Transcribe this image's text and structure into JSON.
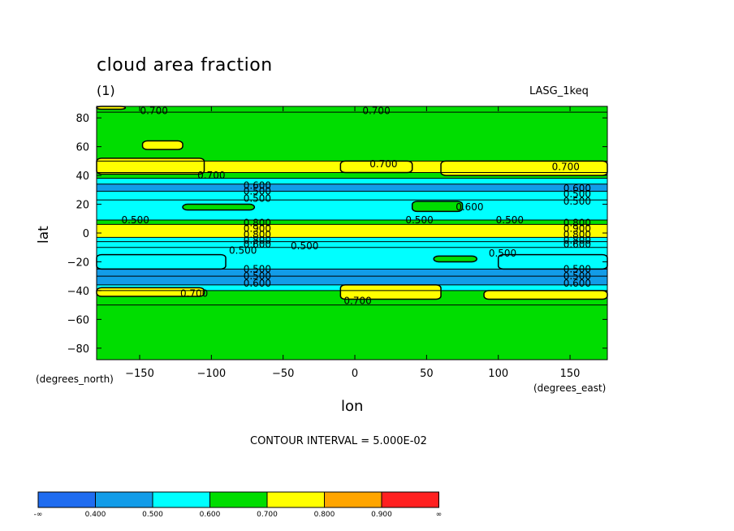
{
  "chart_data": {
    "type": "heatmap",
    "title": "cloud area fraction",
    "subtitle": "(1)",
    "dataset_label": "LASG_1keq",
    "xlabel": "lon",
    "ylabel": "lat",
    "x_units": "(degrees_east)",
    "y_units": "(degrees_north)",
    "xlim": [
      -180,
      176
    ],
    "ylim": [
      -88,
      88
    ],
    "x_ticks": [
      -150,
      -100,
      -50,
      0,
      50,
      100,
      150
    ],
    "y_ticks": [
      80,
      60,
      40,
      20,
      0,
      -20,
      -40,
      -60,
      -80
    ],
    "contour_interval_text": "CONTOUR INTERVAL = 5.000E-02",
    "levels": [
      0.4,
      0.5,
      0.6,
      0.7,
      0.8,
      0.9
    ],
    "level_labels": [
      "-∞",
      "0.400",
      "0.500",
      "0.600",
      "0.700",
      "0.800",
      "0.900",
      "∞"
    ],
    "level_colors": [
      "#1f6cf0",
      "#129ce8",
      "#00ffff",
      "#00dd00",
      "#ffff00",
      "#ffa500",
      "#ff2020"
    ],
    "zonal_bands": [
      {
        "lat": [
          84,
          88
        ],
        "value": 0.65
      },
      {
        "lat": [
          50,
          84
        ],
        "value": 0.65
      },
      {
        "lat": [
          42,
          50
        ],
        "value": 0.72
      },
      {
        "lat": [
          38,
          42
        ],
        "value": 0.65
      },
      {
        "lat": [
          34,
          38
        ],
        "value": 0.55
      },
      {
        "lat": [
          29,
          34
        ],
        "value": 0.45
      },
      {
        "lat": [
          23,
          29
        ],
        "value": 0.52
      },
      {
        "lat": [
          9,
          23
        ],
        "value": 0.55
      },
      {
        "lat": [
          6,
          9
        ],
        "value": 0.62
      },
      {
        "lat": [
          -3,
          6
        ],
        "value": 0.75
      },
      {
        "lat": [
          -6,
          -3
        ],
        "value": 0.5
      },
      {
        "lat": [
          -10,
          -6
        ],
        "value": 0.55
      },
      {
        "lat": [
          -25,
          -10
        ],
        "value": 0.55
      },
      {
        "lat": [
          -30,
          -25
        ],
        "value": 0.45
      },
      {
        "lat": [
          -36,
          -30
        ],
        "value": 0.48
      },
      {
        "lat": [
          -40,
          -36
        ],
        "value": 0.55
      },
      {
        "lat": [
          -50,
          -40
        ],
        "value": 0.65
      },
      {
        "lat": [
          -88,
          -50
        ],
        "value": 0.65
      }
    ],
    "patches": [
      {
        "lon": [
          -180,
          -105
        ],
        "lat": [
          41,
          52
        ],
        "value": 0.72
      },
      {
        "lon": [
          -10,
          40
        ],
        "lat": [
          42,
          50
        ],
        "value": 0.72
      },
      {
        "lon": [
          60,
          176
        ],
        "lat": [
          40,
          50
        ],
        "value": 0.72
      },
      {
        "lon": [
          -148,
          -120
        ],
        "lat": [
          58,
          64
        ],
        "value": 0.72
      },
      {
        "lon": [
          -180,
          -160
        ],
        "lat": [
          86,
          88
        ],
        "value": 0.72
      },
      {
        "lon": [
          -180,
          -105
        ],
        "lat": [
          -44,
          -38
        ],
        "value": 0.72
      },
      {
        "lon": [
          -10,
          60
        ],
        "lat": [
          -46,
          -36
        ],
        "value": 0.72
      },
      {
        "lon": [
          90,
          176
        ],
        "lat": [
          -46,
          -40
        ],
        "value": 0.72
      },
      {
        "lon": [
          40,
          75
        ],
        "lat": [
          15,
          22
        ],
        "value": 0.65
      },
      {
        "lon": [
          -120,
          -70
        ],
        "lat": [
          16,
          20
        ],
        "value": 0.65
      },
      {
        "lon": [
          55,
          85
        ],
        "lat": [
          -20,
          -16
        ],
        "value": 0.65
      },
      {
        "lon": [
          -180,
          -90
        ],
        "lat": [
          -25,
          -15
        ],
        "value": 0.5
      },
      {
        "lon": [
          100,
          176
        ],
        "lat": [
          -25,
          -15
        ],
        "value": 0.5
      }
    ],
    "contour_labels": [
      {
        "text": "0.700",
        "lon": -140,
        "lat": 85
      },
      {
        "text": "0.700",
        "lon": 15,
        "lat": 85
      },
      {
        "text": "0.700",
        "lon": 20,
        "lat": 48
      },
      {
        "text": "0.700",
        "lon": 147,
        "lat": 46
      },
      {
        "text": "0.700",
        "lon": -100,
        "lat": 40
      },
      {
        "text": "0.600",
        "lon": -68,
        "lat": 33
      },
      {
        "text": "0.600",
        "lon": 155,
        "lat": 31
      },
      {
        "text": "0.500",
        "lon": -68,
        "lat": 29
      },
      {
        "text": "0.500",
        "lon": 155,
        "lat": 27
      },
      {
        "text": "0.500",
        "lon": -68,
        "lat": 24
      },
      {
        "text": "0.500",
        "lon": 155,
        "lat": 22
      },
      {
        "text": "0.600",
        "lon": 80,
        "lat": 18
      },
      {
        "text": "0.500",
        "lon": -153,
        "lat": 9
      },
      {
        "text": "0.500",
        "lon": 45,
        "lat": 9
      },
      {
        "text": "0.500",
        "lon": 108,
        "lat": 9
      },
      {
        "text": "0.800",
        "lon": -68,
        "lat": 7
      },
      {
        "text": "0.800",
        "lon": 155,
        "lat": 7
      },
      {
        "text": "0.900",
        "lon": -68,
        "lat": 3
      },
      {
        "text": "0.900",
        "lon": 155,
        "lat": 3
      },
      {
        "text": "0.800",
        "lon": -68,
        "lat": -1
      },
      {
        "text": "0.800",
        "lon": 155,
        "lat": -1
      },
      {
        "text": "0.800",
        "lon": -68,
        "lat": -5
      },
      {
        "text": "0.800",
        "lon": 155,
        "lat": -5
      },
      {
        "text": "0.600",
        "lon": -68,
        "lat": -8
      },
      {
        "text": "0.600",
        "lon": 155,
        "lat": -8
      },
      {
        "text": "0.500",
        "lon": -78,
        "lat": -12
      },
      {
        "text": "0.500",
        "lon": -35,
        "lat": -9
      },
      {
        "text": "0.500",
        "lon": 103,
        "lat": -14
      },
      {
        "text": "0.500",
        "lon": -68,
        "lat": -25
      },
      {
        "text": "0.500",
        "lon": 155,
        "lat": -25
      },
      {
        "text": "0.500",
        "lon": -68,
        "lat": -30
      },
      {
        "text": "0.500",
        "lon": 155,
        "lat": -30
      },
      {
        "text": "0.600",
        "lon": -68,
        "lat": -35
      },
      {
        "text": "0.600",
        "lon": 155,
        "lat": -35
      },
      {
        "text": "0.700",
        "lon": -112,
        "lat": -42
      },
      {
        "text": "0.700",
        "lon": 2,
        "lat": -47
      }
    ]
  }
}
